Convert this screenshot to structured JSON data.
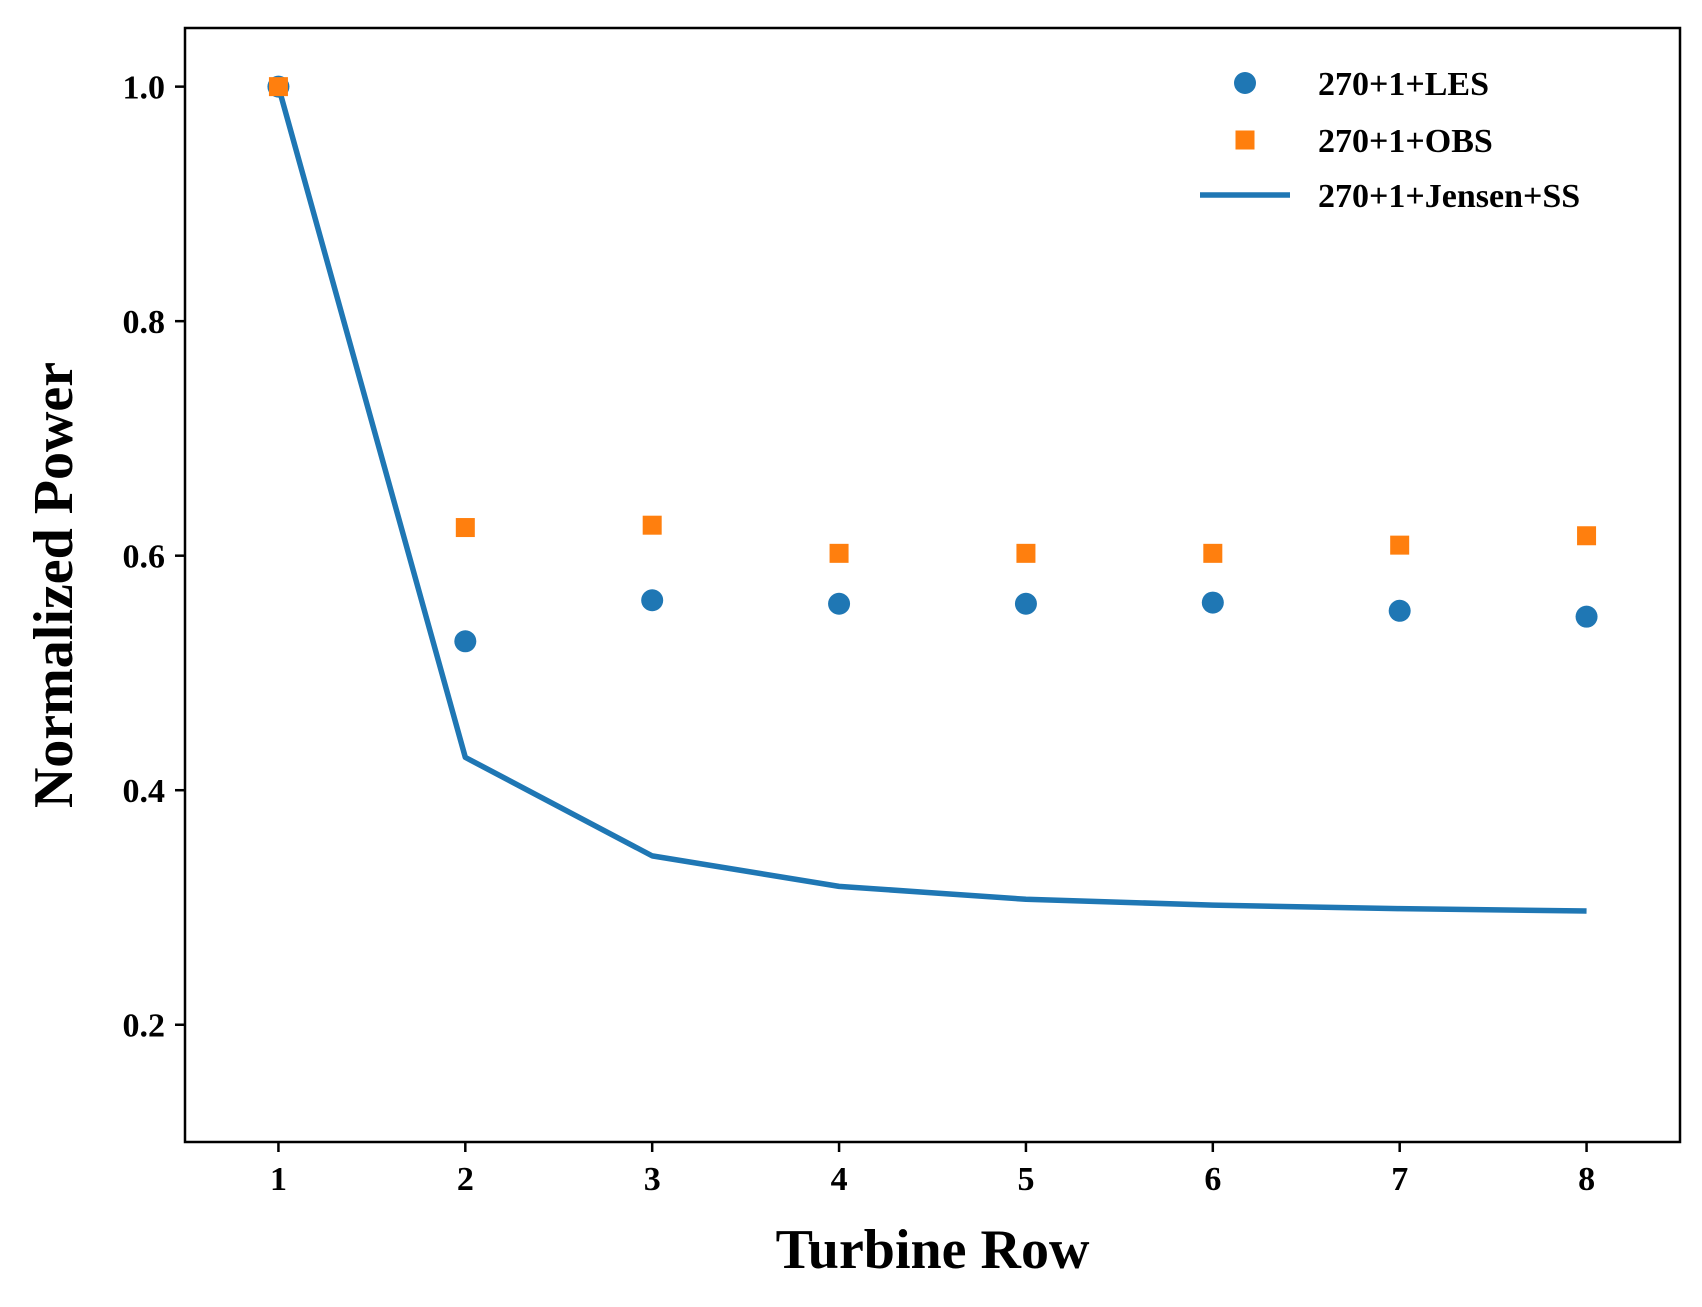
{
  "chart_data": {
    "type": "scatter",
    "title": "",
    "xlabel": "Turbine Row",
    "ylabel": "Normalized Power",
    "xlim": [
      0.5,
      8.5
    ],
    "ylim": [
      0.1,
      1.05
    ],
    "xticks": [
      1,
      2,
      3,
      4,
      5,
      6,
      7,
      8
    ],
    "xtick_labels": [
      "1",
      "2",
      "3",
      "4",
      "5",
      "6",
      "7",
      "8"
    ],
    "yticks": [
      0.2,
      0.4,
      0.6,
      0.8,
      1.0
    ],
    "ytick_labels": [
      "0.2",
      "0.4",
      "0.6",
      "0.8",
      "1.0"
    ],
    "grid": false,
    "legend_position": "top-right",
    "series": [
      {
        "name": "270+1+LES",
        "kind": "scatter",
        "marker": "circle",
        "color": "#1f77b4",
        "x": [
          1,
          2,
          3,
          4,
          5,
          6,
          7,
          8
        ],
        "y": [
          1.0,
          0.527,
          0.562,
          0.559,
          0.559,
          0.56,
          0.553,
          0.548
        ]
      },
      {
        "name": "270+1+OBS",
        "kind": "scatter",
        "marker": "square",
        "color": "#ff7f0e",
        "x": [
          1,
          2,
          3,
          4,
          5,
          6,
          7,
          8
        ],
        "y": [
          1.0,
          0.624,
          0.626,
          0.602,
          0.602,
          0.602,
          0.609,
          0.617
        ]
      },
      {
        "name": "270+1+Jensen+SS",
        "kind": "line",
        "color": "#1f77b4",
        "x": [
          1,
          2,
          3,
          4,
          5,
          6,
          7,
          8
        ],
        "y": [
          1.0,
          0.428,
          0.344,
          0.318,
          0.307,
          0.302,
          0.299,
          0.297
        ]
      }
    ]
  }
}
